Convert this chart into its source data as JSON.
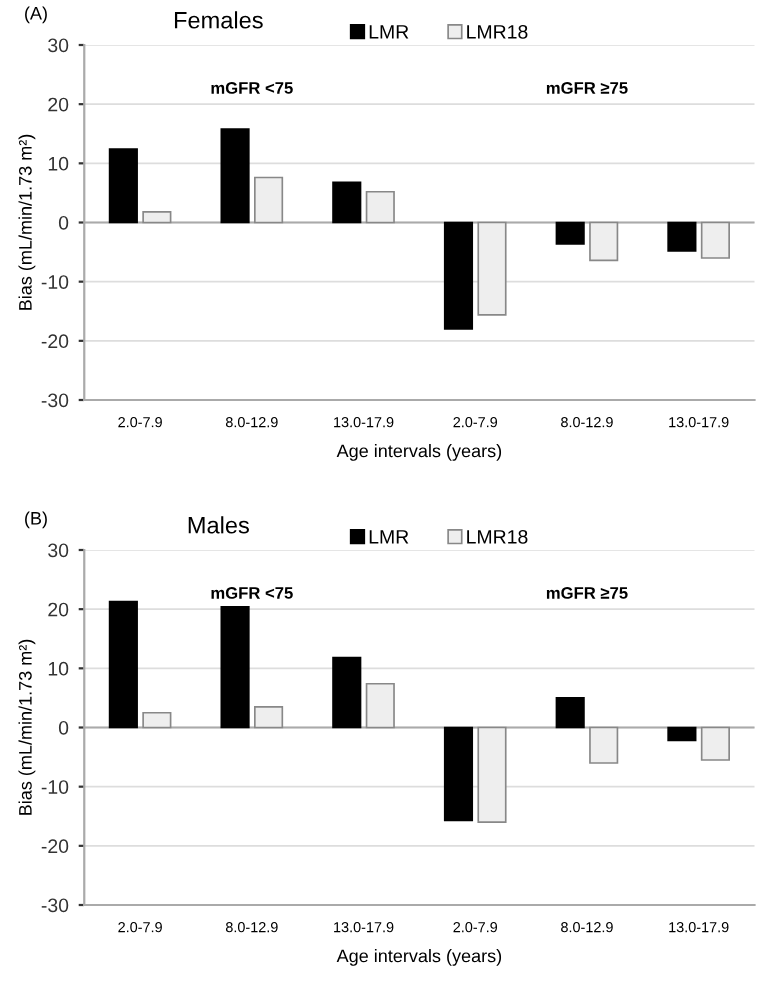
{
  "chart_data": [
    {
      "type": "bar",
      "title": "Females",
      "xlabel": "Age intervals (years)",
      "ylabel": "Bias (mL/min/1.73 m²)",
      "categories": [
        "2.0-7.9",
        "8.0-12.9",
        "13.0-17.9",
        "2.0-7.9",
        "8.0-12.9",
        "13.0-17.9"
      ],
      "series": [
        {
          "name": "LMR",
          "color": "#000000",
          "values": [
            12.4,
            15.8,
            6.8,
            -18.0,
            -3.6,
            -4.8
          ]
        },
        {
          "name": "LMR18",
          "color": "#eeeeee",
          "values": [
            1.8,
            7.6,
            5.2,
            -15.6,
            -6.4,
            -6.0
          ]
        }
      ],
      "ylim": [
        -30,
        30
      ],
      "yticks": [
        -30,
        -20,
        -10,
        0,
        10,
        20,
        30
      ],
      "grid": "y",
      "legend": "top",
      "annotations": [
        "(A)",
        "mGFR <75",
        "mGFR ≥75"
      ]
    },
    {
      "type": "bar",
      "title": "Males",
      "xlabel": "Age intervals (years)",
      "ylabel": "Bias (mL/min/1.73 m²)",
      "categories": [
        "2.0-7.9",
        "8.0-12.9",
        "13.0-17.9",
        "2.0-7.9",
        "8.0-12.9",
        "13.0-17.9"
      ],
      "series": [
        {
          "name": "LMR",
          "color": "#000000",
          "values": [
            21.3,
            20.4,
            11.8,
            -15.7,
            5.0,
            -2.2
          ]
        },
        {
          "name": "LMR18",
          "color": "#eeeeee",
          "values": [
            2.5,
            3.5,
            7.4,
            -16.0,
            -6.0,
            -5.5
          ]
        }
      ],
      "ylim": [
        -30,
        30
      ],
      "yticks": [
        -30,
        -20,
        -10,
        0,
        10,
        20,
        30
      ],
      "grid": "y",
      "legend": "top",
      "annotations": [
        "(B)",
        "mGFR <75",
        "mGFR ≥75"
      ]
    }
  ]
}
